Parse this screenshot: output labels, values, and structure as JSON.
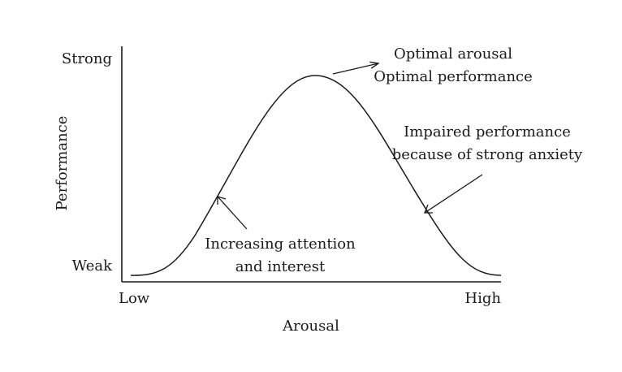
{
  "diagram": {
    "x_axis_label": "Arousal",
    "y_axis_label": "Performance",
    "x_ticks": {
      "low": "Low",
      "high": "High"
    },
    "y_ticks": {
      "strong": "Strong",
      "weak": "Weak"
    },
    "annotations": {
      "peak": [
        "Optimal arousal",
        "Optimal performance"
      ],
      "rising": [
        "Increasing attention",
        "and interest"
      ],
      "falling": [
        "Impaired performance",
        "because of strong anxiety"
      ]
    },
    "colors": {
      "ink": "#1a1a1a",
      "background": "#ffffff"
    }
  }
}
